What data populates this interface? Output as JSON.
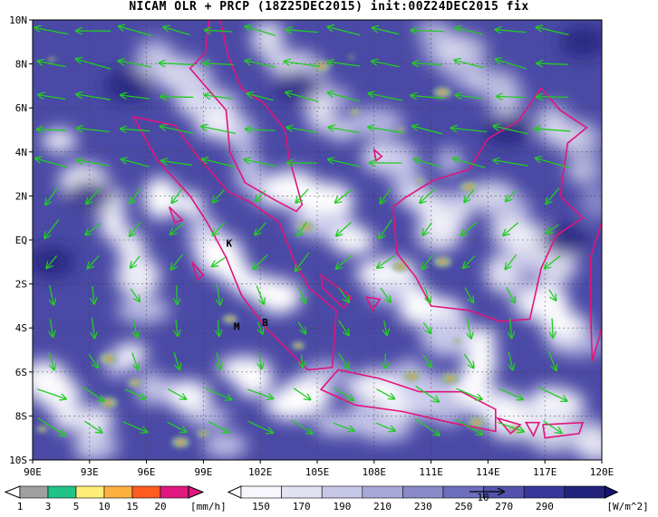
{
  "title": "NICAM OLR + PRCP (18Z25DEC2015) init:00Z24DEC2015 fix",
  "map": {
    "lon_range": [
      90,
      120
    ],
    "lat_range": [
      -10,
      10
    ],
    "lat_ticks": [
      "10N",
      "8N",
      "6N",
      "4N",
      "2N",
      "EQ",
      "2S",
      "4S",
      "6S",
      "8S",
      "10S"
    ],
    "lon_ticks": [
      "90E",
      "93E",
      "96E",
      "99E",
      "102E",
      "105E",
      "108E",
      "111E",
      "114E",
      "117E",
      "120E"
    ],
    "place_labels": [
      {
        "text": "K",
        "lon": 100.2,
        "lat": -0.3
      },
      {
        "text": "M",
        "lon": 100.6,
        "lat": -4.1
      },
      {
        "text": "B",
        "lon": 102.1,
        "lat": -3.9
      }
    ],
    "colors": {
      "olr_low": "#20207a",
      "olr_mid": "#5a5ab0",
      "olr_high": "#ffffff",
      "coast": "#e0157a",
      "wind": "#22cc22",
      "precip_low": "#aaaaaa",
      "precip_mid": "#22cc88",
      "precip_high": "#e83030"
    }
  },
  "precip_legend": {
    "labels": [
      "1",
      "3",
      "5",
      "10",
      "15",
      "20"
    ],
    "unit": "[mm/h]",
    "colors": [
      "#a0a0a0",
      "#22c388",
      "#ffee77",
      "#ffb040",
      "#ff5a20",
      "#e01880"
    ]
  },
  "olr_legend": {
    "labels": [
      "150",
      "170",
      "190",
      "210",
      "230",
      "250",
      "270",
      "290"
    ],
    "unit": "[W/m^2]",
    "reference_vector": "10",
    "colors": [
      "#f6f6fc",
      "#e2e2f2",
      "#c6c6e6",
      "#a8a8d8",
      "#8a8acb",
      "#6e6ebe",
      "#5252ad",
      "#37379a",
      "#22227d"
    ]
  }
}
